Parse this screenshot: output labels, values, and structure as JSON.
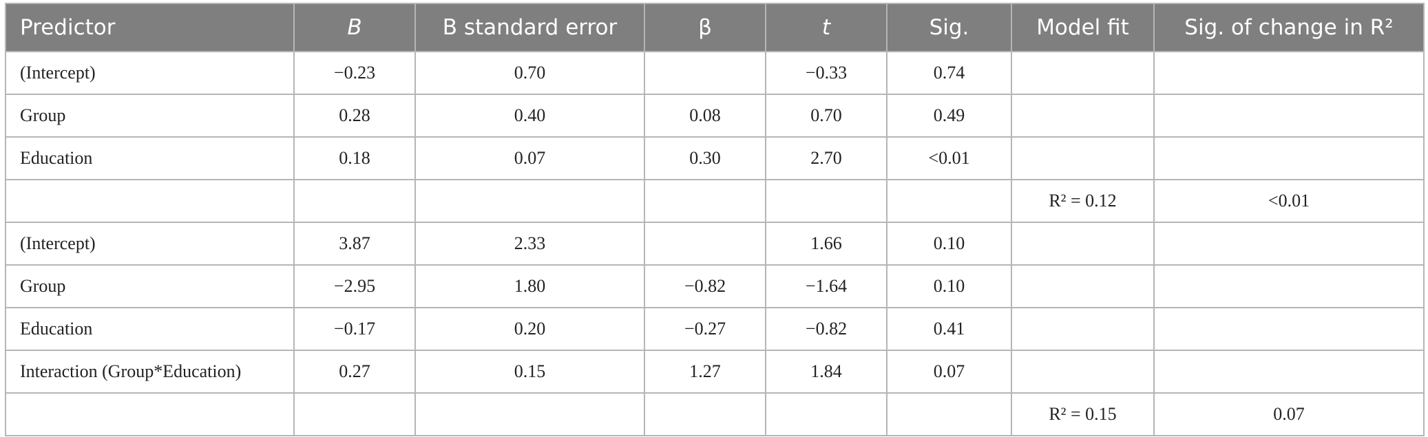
{
  "table": {
    "header": [
      "Predictor",
      "B",
      "B standard error",
      "β",
      "t",
      "Sig.",
      "Model fit",
      "Sig. of change in R²"
    ],
    "rows": [
      [
        "(Intercept)",
        "−0.23",
        "0.70",
        null,
        "−0.33",
        "0.74",
        null,
        null
      ],
      [
        "Group",
        "0.28",
        "0.40",
        "0.08",
        "0.70",
        "0.49",
        null,
        null
      ],
      [
        "Education",
        "0.18",
        "0.07",
        "0.30",
        "2.70",
        "<0.01",
        null,
        null
      ],
      [
        null,
        null,
        null,
        null,
        null,
        null,
        "R² = 0.12",
        "<0.01"
      ],
      [
        "(Intercept)",
        "3.87",
        "2.33",
        null,
        "1.66",
        "0.10",
        null,
        null
      ],
      [
        "Group",
        "−2.95",
        "1.80",
        "−0.82",
        "−1.64",
        "0.10",
        null,
        null
      ],
      [
        "Education",
        "−0.17",
        "0.20",
        "−0.27",
        "−0.82",
        "0.41",
        null,
        null
      ],
      [
        "Interaction (Group*Education)",
        "0.27",
        "0.15",
        "1.27",
        "1.84",
        "0.07",
        null,
        null
      ],
      [
        null,
        null,
        null,
        null,
        null,
        null,
        "R² = 0.15",
        "0.07"
      ]
    ]
  }
}
